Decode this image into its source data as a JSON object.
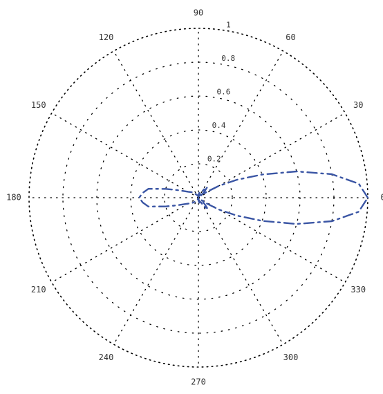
{
  "chart_data": {
    "type": "line",
    "subtype": "polar",
    "title": "",
    "angle_unit": "degrees",
    "angular_ticks": [
      0,
      30,
      60,
      90,
      120,
      150,
      180,
      210,
      240,
      270,
      300,
      330
    ],
    "angular_tick_labels": [
      "0",
      "30",
      "60",
      "90",
      "120",
      "150",
      "180",
      "210",
      "240",
      "270",
      "300",
      "330"
    ],
    "radial_ticks": [
      0.2,
      0.4,
      0.6,
      0.8,
      1.0
    ],
    "radial_tick_labels": [
      "0.2",
      "0.4",
      "0.6",
      "0.8",
      "1"
    ],
    "rlim": [
      0,
      1
    ],
    "grid": true,
    "grid_style": "dotted",
    "series": [
      {
        "style": "dashed",
        "color": "#3a55a4",
        "theta": [
          0,
          5,
          10,
          15,
          20,
          25,
          30,
          35,
          40,
          45,
          50,
          55,
          60,
          65,
          70,
          75,
          80,
          85,
          90,
          95,
          100,
          110,
          120,
          130,
          140,
          150,
          160,
          165,
          170,
          175,
          180,
          185,
          190,
          195,
          200,
          210,
          220,
          230,
          240,
          250,
          260,
          265,
          270,
          275,
          280,
          285,
          290,
          295,
          300,
          305,
          310,
          315,
          320,
          325,
          330,
          335,
          340,
          345,
          350,
          355,
          360
        ],
        "r": [
          1.0,
          0.95,
          0.8,
          0.6,
          0.4,
          0.25,
          0.14,
          0.06,
          0.02,
          0.05,
          0.08,
          0.07,
          0.04,
          0.02,
          0.01,
          0.02,
          0.03,
          0.02,
          0.01,
          0.01,
          0.0,
          0.01,
          0.02,
          0.03,
          0.05,
          0.07,
          0.13,
          0.2,
          0.3,
          0.33,
          0.35,
          0.33,
          0.3,
          0.2,
          0.13,
          0.07,
          0.05,
          0.03,
          0.02,
          0.01,
          0.0,
          0.01,
          0.01,
          0.02,
          0.03,
          0.02,
          0.01,
          0.02,
          0.04,
          0.07,
          0.08,
          0.05,
          0.02,
          0.06,
          0.14,
          0.25,
          0.4,
          0.6,
          0.8,
          0.95,
          1.0
        ]
      }
    ]
  }
}
